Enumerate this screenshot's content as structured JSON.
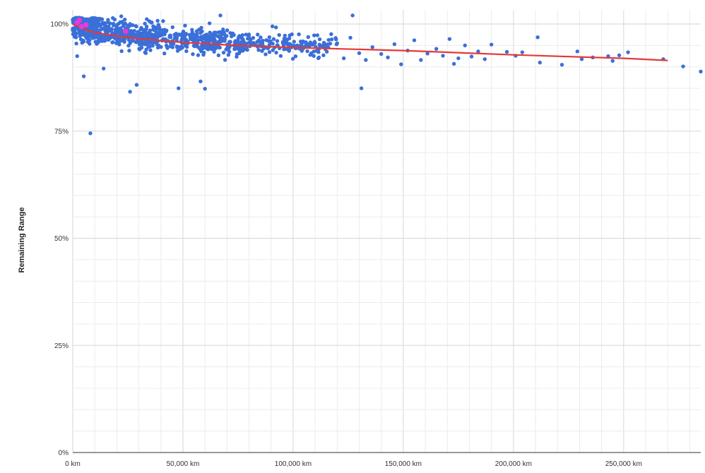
{
  "chart_data": {
    "type": "scatter",
    "title": "",
    "xlabel": "",
    "ylabel": "Remaining Range",
    "xlim": [
      0,
      285000
    ],
    "ylim": [
      0,
      100
    ],
    "grid": true,
    "x_ticks": [
      {
        "value": 0,
        "label": "0 km"
      },
      {
        "value": 50000,
        "label": "50,000 km"
      },
      {
        "value": 100000,
        "label": "100,000 km"
      },
      {
        "value": 150000,
        "label": "150,000 km"
      },
      {
        "value": 200000,
        "label": "200,000 km"
      },
      {
        "value": 250000,
        "label": "250,000 km"
      }
    ],
    "y_ticks": [
      {
        "value": 0,
        "label": "0%"
      },
      {
        "value": 25,
        "label": "25%"
      },
      {
        "value": 50,
        "label": "50%"
      },
      {
        "value": 75,
        "label": "75%"
      },
      {
        "value": 100,
        "label": "100%"
      }
    ],
    "point_color": "#3b6fd8",
    "highlight_color": "#e83ad8",
    "trend_color": "#e53935",
    "outliers": [
      [
        2000,
        92.5
      ],
      [
        5000,
        87.8
      ],
      [
        8000,
        74.5
      ],
      [
        14000,
        89.6
      ],
      [
        26000,
        84.2
      ],
      [
        29000,
        85.8
      ],
      [
        48000,
        85.0
      ],
      [
        58000,
        86.6
      ],
      [
        60000,
        84.9
      ],
      [
        131000,
        85.0
      ],
      [
        67000,
        102
      ],
      [
        127000,
        102
      ],
      [
        22000,
        101.8
      ]
    ],
    "sparse_points": [
      [
        120000,
        95.5
      ],
      [
        123000,
        92.0
      ],
      [
        126000,
        96.8
      ],
      [
        130000,
        93.2
      ],
      [
        133000,
        91.6
      ],
      [
        136000,
        94.6
      ],
      [
        140000,
        93.0
      ],
      [
        143000,
        92.2
      ],
      [
        146000,
        95.3
      ],
      [
        149000,
        90.6
      ],
      [
        152000,
        93.8
      ],
      [
        155000,
        96.2
      ],
      [
        158000,
        91.6
      ],
      [
        161000,
        93.1
      ],
      [
        165000,
        94.2
      ],
      [
        168000,
        92.6
      ],
      [
        171000,
        96.5
      ],
      [
        173000,
        90.7
      ],
      [
        175000,
        92.0
      ],
      [
        178000,
        95.0
      ],
      [
        181000,
        92.4
      ],
      [
        184000,
        93.6
      ],
      [
        187000,
        91.8
      ],
      [
        190000,
        95.2
      ],
      [
        197000,
        93.5
      ],
      [
        201000,
        92.6
      ],
      [
        204000,
        93.4
      ],
      [
        211000,
        96.9
      ],
      [
        212000,
        91.0
      ],
      [
        222000,
        90.5
      ],
      [
        229000,
        93.6
      ],
      [
        231000,
        91.8
      ],
      [
        236000,
        92.2
      ],
      [
        243000,
        92.5
      ],
      [
        245000,
        91.4
      ],
      [
        248000,
        92.7
      ],
      [
        252000,
        93.4
      ],
      [
        268000,
        91.8
      ],
      [
        277000,
        90.1
      ],
      [
        285000,
        88.9
      ]
    ],
    "dense_seed": 7,
    "trend": [
      [
        0,
        100.0
      ],
      [
        5000,
        98.8
      ],
      [
        10000,
        98.0
      ],
      [
        20000,
        97.2
      ],
      [
        30000,
        96.6
      ],
      [
        50000,
        95.7
      ],
      [
        75000,
        95.0
      ],
      [
        100000,
        94.5
      ],
      [
        150000,
        93.8
      ],
      [
        200000,
        92.8
      ],
      [
        250000,
        92.0
      ],
      [
        270000,
        91.5
      ]
    ],
    "highlights": [
      [
        2000,
        100.3
      ],
      [
        4000,
        99.4
      ],
      [
        6000,
        99.8
      ],
      [
        3000,
        100.9
      ],
      [
        24000,
        98.3
      ]
    ]
  }
}
